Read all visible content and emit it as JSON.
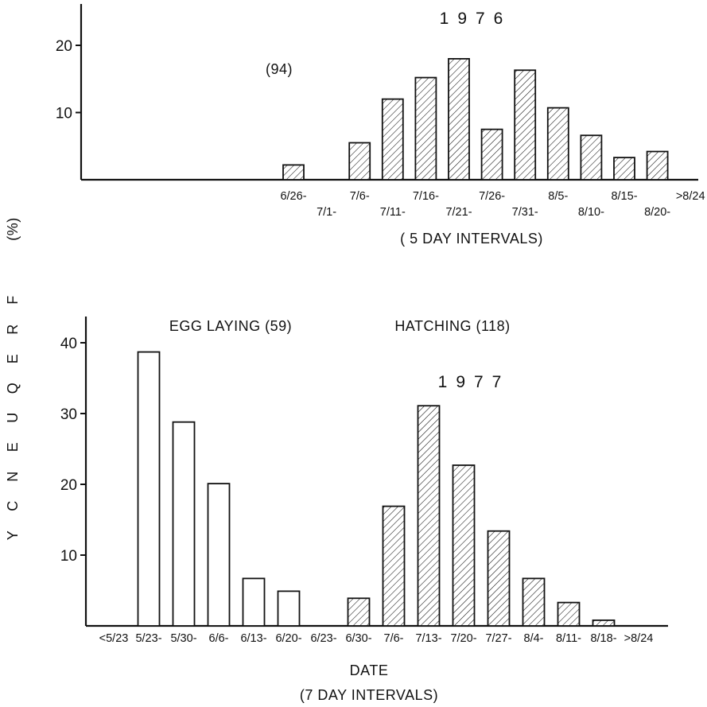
{
  "y_axis_label": [
    "F",
    "R",
    "E",
    "Q",
    "U",
    "E",
    "N",
    "C",
    "Y"
  ],
  "y_axis_unit": "(%)",
  "chart_data": [
    {
      "type": "bar",
      "title": "1976",
      "annotation": "(94)",
      "xlabel": "( 5 DAY INTERVALS)",
      "ylabel": "FREQUENCY (%)",
      "ylim": [
        0,
        26
      ],
      "yticks": [
        10,
        20
      ],
      "categories": [
        "6/26-",
        "7/1-",
        "7/6-",
        "7/11-",
        "7/16-",
        "7/21-",
        "7/26-",
        "7/31-",
        "8/5-",
        "8/10-",
        "8/15-",
        "8/20-",
        ">8/24"
      ],
      "series": [
        {
          "fill": "hatched",
          "values": [
            2.2,
            0,
            5.5,
            12,
            15.2,
            18,
            7.5,
            16.3,
            10.7,
            6.6,
            3.3,
            4.2,
            0
          ]
        }
      ]
    },
    {
      "type": "bar",
      "title": "1977",
      "xlabel": "DATE",
      "xlabel2": "(7 DAY INTERVALS)",
      "ylabel": "FREQUENCY (%)",
      "ylim": [
        0,
        44
      ],
      "yticks": [
        10,
        20,
        30,
        40
      ],
      "categories": [
        "<5/23",
        "5/23-",
        "5/30-",
        "6/6-",
        "6/13-",
        "6/20-",
        "6/23-",
        "6/30-",
        "7/6-",
        "7/13-",
        "7/20-",
        "7/27-",
        "8/4-",
        "8/11-",
        "8/18-",
        ">8/24"
      ],
      "series": [
        {
          "name": "EGG LAYING (59)",
          "fill": "open",
          "values": [
            0,
            38.7,
            28.8,
            20.1,
            6.7,
            4.9,
            0,
            0,
            0,
            0,
            0,
            0,
            0,
            0,
            0,
            0
          ]
        },
        {
          "name": "HATCHING (118)",
          "fill": "hatched",
          "values": [
            0,
            0,
            0,
            0,
            0,
            0,
            0,
            3.9,
            16.9,
            31.1,
            22.7,
            13.4,
            6.7,
            3.3,
            0.8,
            0
          ]
        }
      ]
    }
  ]
}
